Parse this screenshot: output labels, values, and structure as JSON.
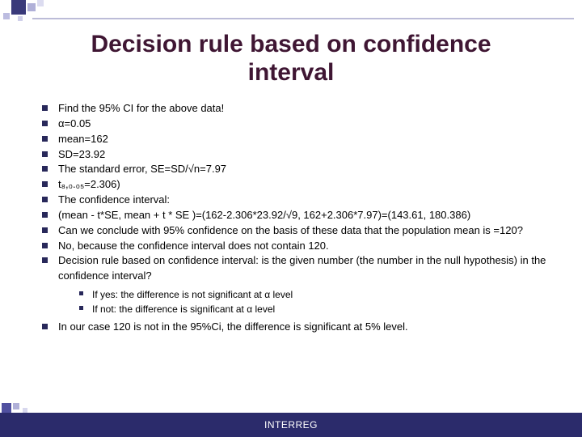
{
  "title": "Decision rule based on confidence interval",
  "bullets": [
    "Find the 95% CI for the above data!",
    "α=0.05",
    "mean=162",
    "SD=23.92",
    "The standard error, SE=SD/√n=7.97",
    "t₈,₀.₀₅=2.306)",
    "The confidence interval:",
    "(mean - t*SE, mean + t * SE )=(162-2.306*23.92/√9, 162+2.306*7.97)=(143.61, 180.386)",
    "Can we conclude with 95% confidence on the basis of these data that the population mean is =120?",
    "No, because the confidence interval does not contain 120.",
    "Decision rule based on confidence interval: is the given number (the number in the null hypothesis) in the confidence interval?"
  ],
  "sub_bullets": [
    "If yes: the difference is not significant at α level",
    "If not: the difference is significant at α level"
  ],
  "final_bullet": "In our case 120 is not in the 95%Ci, the difference is significant at 5% level.",
  "footer": "INTERREG",
  "colors": {
    "title": "#3f1633",
    "bullet_square": "#28285a",
    "footer_bg": "#2b2b6b",
    "footer_text": "#ffffff"
  }
}
